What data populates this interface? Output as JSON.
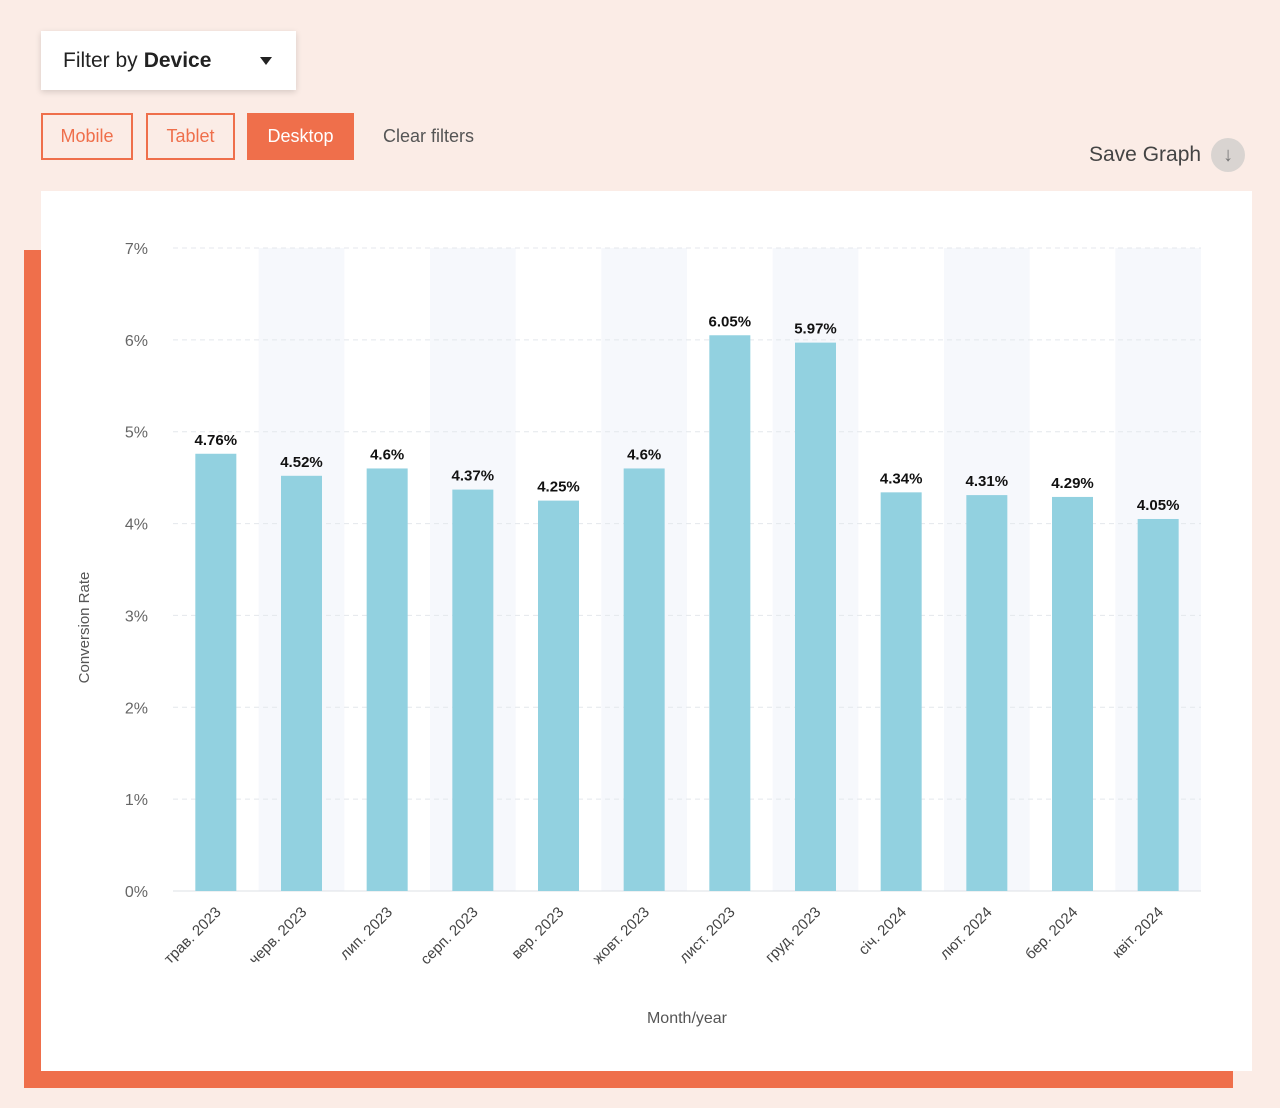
{
  "filter": {
    "prefix": "Filter by",
    "value": "Device"
  },
  "chips": [
    {
      "label": "Mobile",
      "active": false
    },
    {
      "label": "Tablet",
      "active": false
    },
    {
      "label": "Desktop",
      "active": true
    }
  ],
  "clear_filters": "Clear filters",
  "save_graph": "Save Graph",
  "icons": {
    "dropdown": "chevron-down-icon",
    "save": "download-arrow-icon"
  },
  "colors": {
    "accent": "#ef6f4b",
    "bar": "#92d1e0",
    "band": "#f6f8fc",
    "background": "#fbece6"
  },
  "chart_data": {
    "type": "bar",
    "categories": [
      "трав. 2023",
      "черв. 2023",
      "лип. 2023",
      "серп. 2023",
      "вер. 2023",
      "жовт. 2023",
      "лист. 2023",
      "груд. 2023",
      "січ. 2024",
      "лют. 2024",
      "бер. 2024",
      "квіт. 2024"
    ],
    "values": [
      4.76,
      4.52,
      4.6,
      4.37,
      4.25,
      4.6,
      6.05,
      5.97,
      4.34,
      4.31,
      4.29,
      4.05
    ],
    "value_labels": [
      "4.76%",
      "4.52%",
      "4.6%",
      "4.37%",
      "4.25%",
      "4.6%",
      "6.05%",
      "5.97%",
      "4.34%",
      "4.31%",
      "4.29%",
      "4.05%"
    ],
    "yticks": [
      "0%",
      "1%",
      "2%",
      "3%",
      "4%",
      "5%",
      "6%",
      "7%"
    ],
    "ylim": [
      0,
      7
    ],
    "xlabel": "Month/year",
    "ylabel": "Conversion Rate",
    "grid": true
  }
}
